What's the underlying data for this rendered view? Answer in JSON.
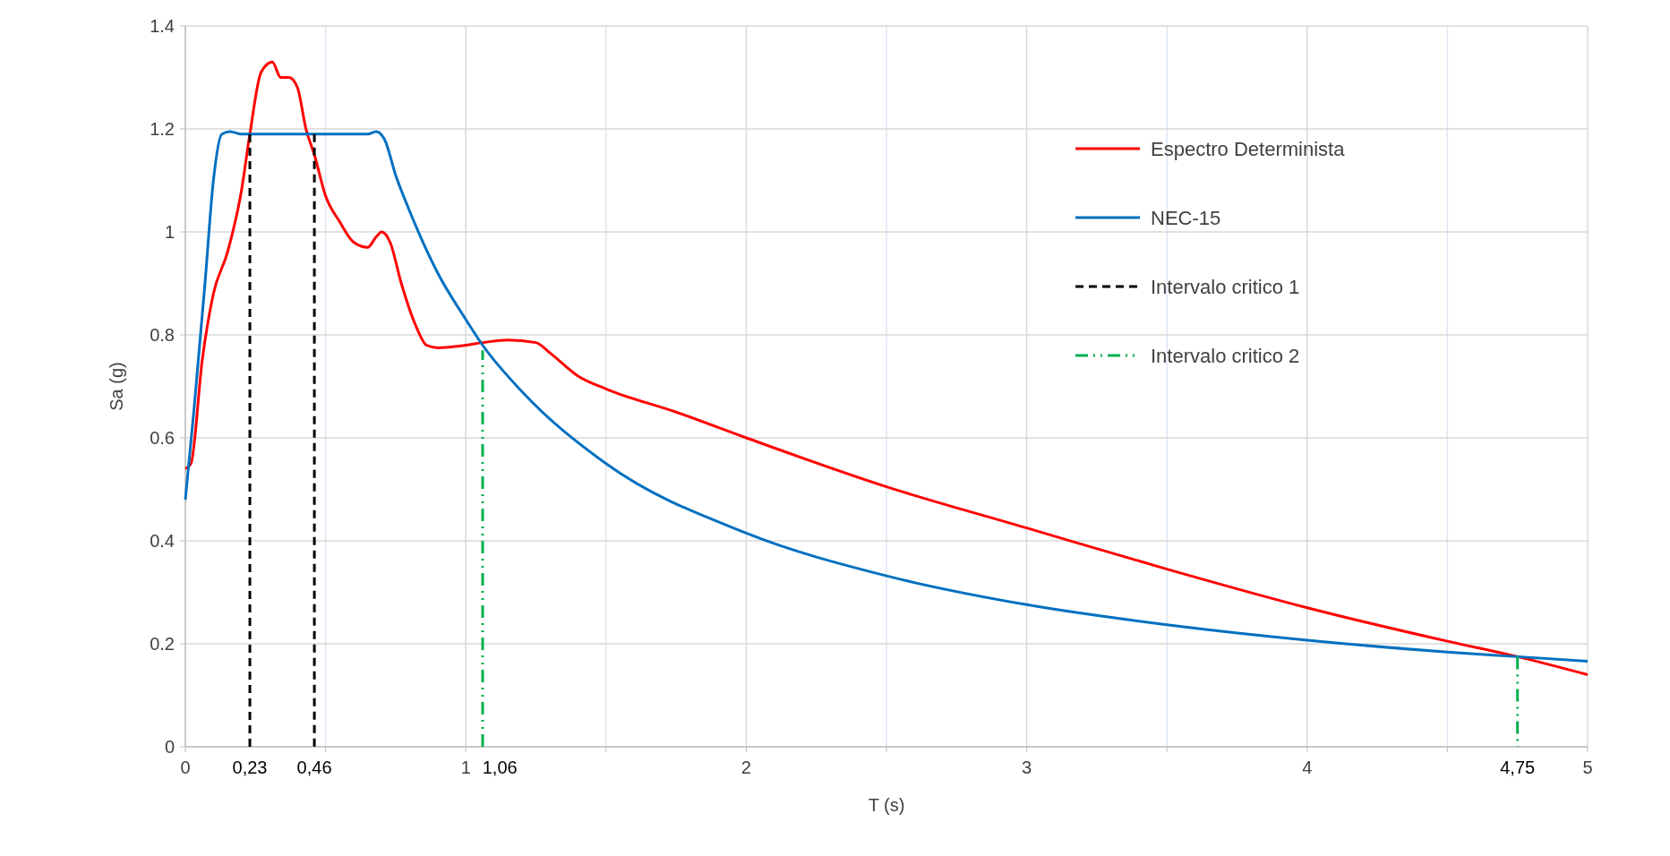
{
  "chart_data": {
    "type": "line",
    "xlabel": "T (s)",
    "ylabel": "Sa (g)",
    "xlim": [
      0,
      5
    ],
    "ylim": [
      0,
      1.4
    ],
    "xticks": [
      0,
      {
        "value": 0.5,
        "label": null
      },
      1,
      {
        "value": 1.5,
        "label": null
      },
      2,
      {
        "value": 2.5,
        "label": null
      },
      3,
      {
        "value": 3.5,
        "label": null
      },
      4,
      {
        "value": 4.5,
        "label": null
      },
      5
    ],
    "annotations": [
      {
        "text": "0,23",
        "x": 0.23,
        "y": 0
      },
      {
        "text": "0,46",
        "x": 0.46,
        "y": 0
      },
      {
        "text": "1,06",
        "x": 1.06,
        "y": 0
      },
      {
        "text": "4,75",
        "x": 4.75,
        "y": 0
      }
    ],
    "yticks": [
      0,
      0.2,
      0.4,
      0.6,
      0.8,
      1,
      1.2,
      1.4
    ],
    "grid": true,
    "legend": "top right",
    "series": [
      {
        "name": "Espectro Determinista",
        "color": "#ff0000",
        "line_style": "solid",
        "x": [
          0,
          0.02,
          0.06,
          0.1,
          0.15,
          0.2,
          0.23,
          0.27,
          0.31,
          0.34,
          0.37,
          0.4,
          0.43,
          0.46,
          0.5,
          0.55,
          0.6,
          0.65,
          0.68,
          0.7,
          0.73,
          0.77,
          0.82,
          0.86,
          0.9,
          1.0,
          1.06,
          1.15,
          1.25,
          1.3,
          1.4,
          1.5,
          1.75,
          2.0,
          2.5,
          3.0,
          3.5,
          4.0,
          4.5,
          4.75,
          5.0
        ],
        "values": [
          0.54,
          0.55,
          0.75,
          0.88,
          0.96,
          1.08,
          1.19,
          1.31,
          1.33,
          1.3,
          1.3,
          1.28,
          1.2,
          1.15,
          1.07,
          1.02,
          0.98,
          0.97,
          0.99,
          1.0,
          0.98,
          0.9,
          0.82,
          0.78,
          0.775,
          0.78,
          0.785,
          0.79,
          0.785,
          0.765,
          0.72,
          0.695,
          0.65,
          0.6,
          0.505,
          0.425,
          0.345,
          0.27,
          0.205,
          0.175,
          0.14
        ]
      },
      {
        "name": "NEC-15",
        "color": "#0070c0",
        "line_style": "solid",
        "x": [
          0,
          0.03,
          0.07,
          0.1,
          0.13,
          0.16,
          0.2,
          0.4,
          0.65,
          0.68,
          0.71,
          0.75,
          0.8,
          0.9,
          1.0,
          1.06,
          1.2,
          1.5,
          2.0,
          2.5,
          3.0,
          3.5,
          4.0,
          4.5,
          4.75,
          5.0
        ],
        "values": [
          0.48,
          0.65,
          0.9,
          1.1,
          1.19,
          1.195,
          1.19,
          1.19,
          1.19,
          1.195,
          1.18,
          1.11,
          1.04,
          0.92,
          0.83,
          0.78,
          0.69,
          0.55,
          0.415,
          0.332,
          0.276,
          0.237,
          0.207,
          0.184,
          0.175,
          0.166
        ]
      },
      {
        "name": "Intervalo critico 1",
        "color": "#000000",
        "line_style": "dashed",
        "x": [
          0.23,
          0.23,
          0.35,
          0.46,
          0.46
        ],
        "values": [
          0,
          1.19,
          null,
          1.19,
          0
        ]
      },
      {
        "name": "Intervalo critico 2",
        "color": "#00b050",
        "line_style": "dashdot",
        "x": [
          1.06,
          1.06,
          3,
          4.75,
          4.75
        ],
        "values": [
          0,
          0.77,
          null,
          0.175,
          0
        ]
      }
    ]
  }
}
